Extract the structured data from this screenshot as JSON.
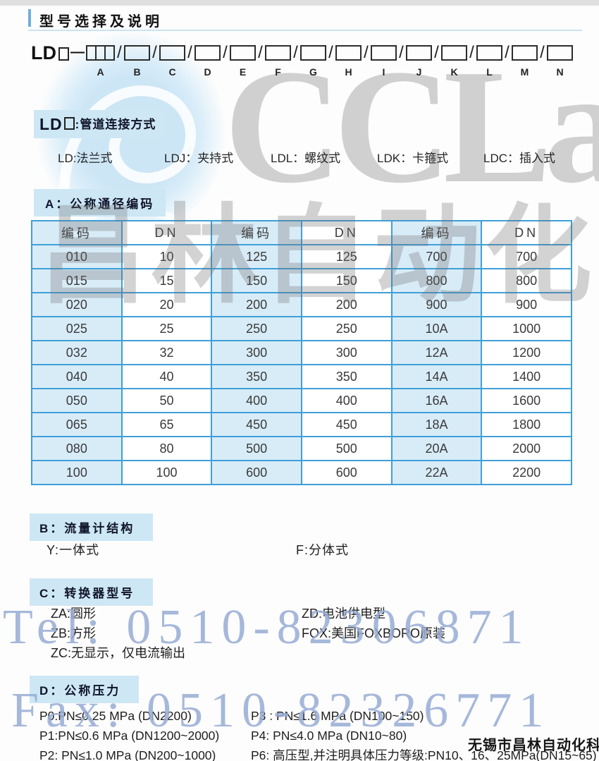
{
  "page": {
    "title": "型号选择及说明"
  },
  "model_code": {
    "prefix": "LD",
    "dash": "—",
    "separator": "/",
    "field_labels": [
      "A",
      "B",
      "C",
      "D",
      "E",
      "F",
      "G",
      "H",
      "I",
      "J",
      "K",
      "L",
      "M",
      "N"
    ]
  },
  "section_ld": {
    "header_prefix": "LD",
    "header_suffix": ":管道连接方式",
    "items": [
      "LD:法兰式",
      "LDJ：夹持式",
      "LDL：螺纹式",
      "LDK：卡箍式",
      "LDC：插入式"
    ]
  },
  "section_a": {
    "header": "A：公称通径编码",
    "table": {
      "headers": [
        "编码",
        "DN",
        "编码",
        "DN",
        "编码",
        "DN"
      ],
      "rows": [
        [
          "010",
          "10",
          "125",
          "125",
          "700",
          "700"
        ],
        [
          "015",
          "15",
          "150",
          "150",
          "800",
          "800"
        ],
        [
          "020",
          "20",
          "200",
          "200",
          "900",
          "900"
        ],
        [
          "025",
          "25",
          "250",
          "250",
          "10A",
          "1000"
        ],
        [
          "032",
          "32",
          "300",
          "300",
          "12A",
          "1200"
        ],
        [
          "040",
          "40",
          "350",
          "350",
          "14A",
          "1400"
        ],
        [
          "050",
          "50",
          "400",
          "400",
          "16A",
          "1600"
        ],
        [
          "065",
          "65",
          "450",
          "450",
          "18A",
          "1800"
        ],
        [
          "080",
          "80",
          "500",
          "500",
          "20A",
          "2000"
        ],
        [
          "100",
          "100",
          "600",
          "600",
          "22A",
          "2200"
        ]
      ]
    }
  },
  "section_b": {
    "header": "B：流量计结构",
    "items": [
      "Y:一体式",
      "F:分体式"
    ]
  },
  "section_c": {
    "header": "C：转换器型号",
    "left_items": [
      "ZA:圆形",
      "ZB:方形",
      "ZC:无显示，仅电流输出"
    ],
    "right_items": [
      "ZD:电池供电型",
      "FOX:美国FOXBORO原装"
    ]
  },
  "section_d": {
    "header": "D：公称压力",
    "left_items": [
      "P0:PN≤0.25 MPa (DN2200)",
      "P1:PN≤0.6 MPa (DN1200~2000)",
      "P2: PN≤1.0 MPa (DN200~1000)"
    ],
    "right_items": [
      "P3 : PN≤1.6 MPa (DN100~150)",
      "P4: PN≤4.0 MPa (DN10~80)",
      "P6: 高压型,并注明具体压力等级:PN10、16、25MPa(DN15~65)"
    ]
  },
  "watermarks": {
    "logo_text": "CCLair",
    "background_text": "昌林自动化",
    "tel": "Tel: 0510-82306871",
    "fax": "Fax: 0510-82326771",
    "company": "无锡市昌林自动化科技"
  },
  "colors": {
    "table_border": "#3f9fd8",
    "code_column_bg": "#d8ecf8",
    "section_header_bg": "#cde7f5",
    "watermark_blue": "#98acd5",
    "watermark_gray": "#c6c6c6",
    "accent_bar": "#6fb0d9"
  }
}
